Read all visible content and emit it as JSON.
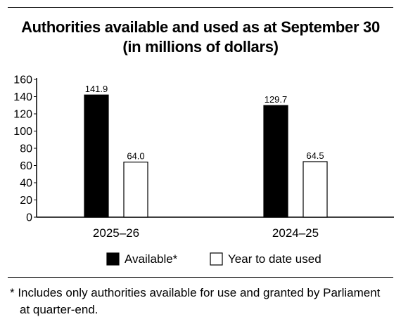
{
  "chart_data": {
    "type": "bar",
    "title": "Authorities available and used as at September 30",
    "subtitle": "(in millions of dollars)",
    "categories": [
      "2025–26",
      "2024–25"
    ],
    "series": [
      {
        "name": "Available*",
        "values": [
          141.9,
          129.7
        ],
        "labels": [
          "141.9",
          "129.7"
        ],
        "color": "#000000"
      },
      {
        "name": "Year to date used",
        "values": [
          64.0,
          64.5
        ],
        "labels": [
          "64.0",
          "64.5"
        ],
        "color": "#ffffff"
      }
    ],
    "yticks": [
      0,
      20,
      40,
      60,
      80,
      100,
      120,
      140,
      160
    ],
    "ylim": [
      0,
      160
    ],
    "grid": false,
    "legend_position": "bottom"
  },
  "footnote": {
    "line1": "* Includes only authorities available for use and granted by Parliament",
    "line2": "at quarter-end."
  }
}
